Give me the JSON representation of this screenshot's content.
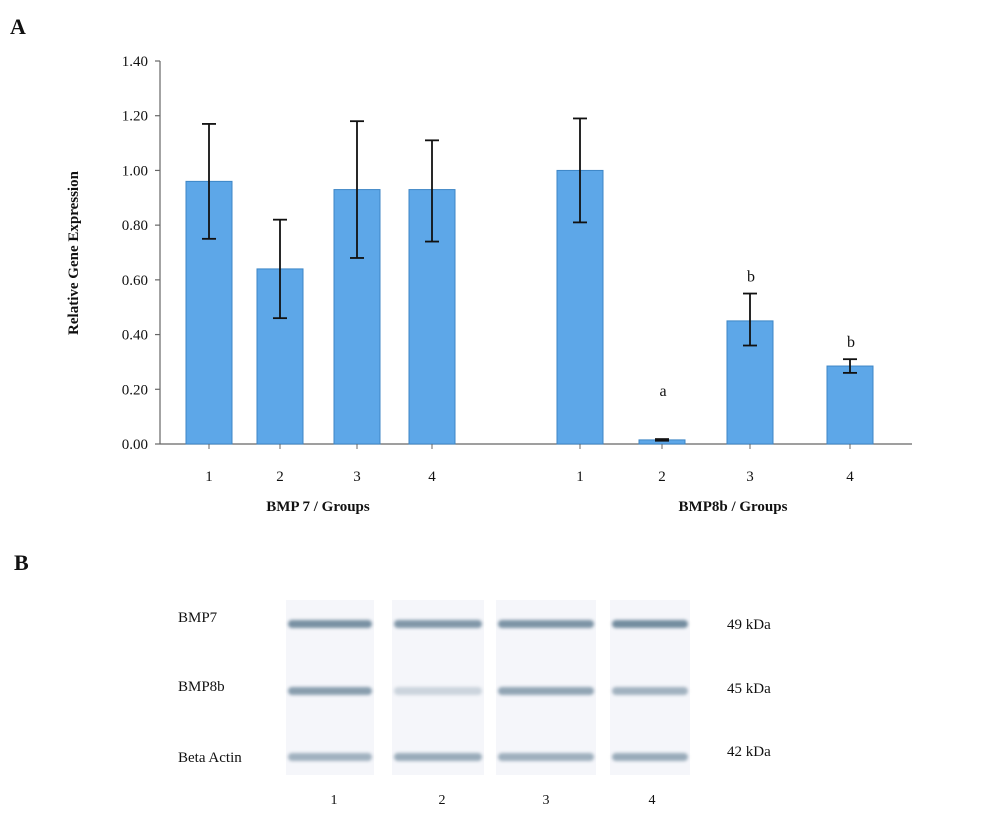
{
  "panel_a_label": "A",
  "panel_b_label": "B",
  "chart_data": {
    "type": "bar",
    "ylabel": "Relative Gene Expression",
    "ylim": [
      0,
      1.4
    ],
    "yticks": [
      "0.00",
      "0.20",
      "0.40",
      "0.60",
      "0.80",
      "1.00",
      "1.20",
      "1.40"
    ],
    "grid": false,
    "bar_color": "#5da7e8",
    "bar_edge_color": "#3d86c6",
    "groups": [
      {
        "name": "BMP 7 / Groups",
        "categories": [
          "1",
          "2",
          "3",
          "4"
        ],
        "values": [
          0.96,
          0.64,
          0.93,
          0.93
        ],
        "error_low": [
          0.75,
          0.46,
          0.68,
          0.74
        ],
        "error_high": [
          1.17,
          0.82,
          1.18,
          1.11
        ],
        "annotations": [
          "",
          "",
          "",
          ""
        ]
      },
      {
        "name": "BMP8b / Groups",
        "categories": [
          "1",
          "2",
          "3",
          "4"
        ],
        "values": [
          1.0,
          0.015,
          0.45,
          0.285
        ],
        "error_low": [
          0.81,
          0.012,
          0.36,
          0.26
        ],
        "error_high": [
          1.19,
          0.018,
          0.55,
          0.31
        ],
        "annotations": [
          "",
          "a",
          "b",
          "b"
        ]
      }
    ]
  },
  "blot": {
    "rows": [
      {
        "label": "BMP7",
        "kda": "49 kDa",
        "intensity": [
          0.75,
          0.7,
          0.72,
          0.78
        ]
      },
      {
        "label": "BMP8b",
        "kda": "45 kDa",
        "intensity": [
          0.65,
          0.25,
          0.6,
          0.5
        ]
      },
      {
        "label": "Beta Actin",
        "kda": "42 kDa",
        "intensity": [
          0.5,
          0.55,
          0.52,
          0.55
        ]
      }
    ],
    "lanes": [
      "1",
      "2",
      "3",
      "4"
    ],
    "band_color": "#4f6f86"
  }
}
